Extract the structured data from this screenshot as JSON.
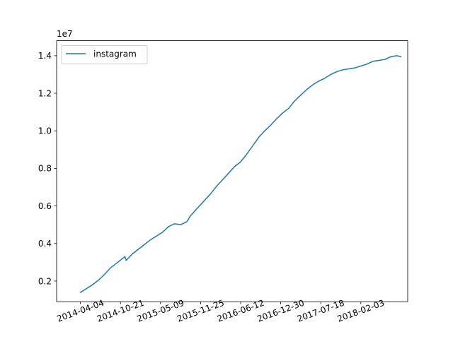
{
  "chart_data": {
    "type": "line",
    "title": "",
    "xlabel": "",
    "ylabel": "",
    "y_multiplier_label": "1e7",
    "x_tick_labels": [
      "2014-04-04",
      "2014-10-21",
      "2015-05-09",
      "2015-11-25",
      "2016-06-12",
      "2016-12-30",
      "2017-07-18",
      "2018-02-03"
    ],
    "y_ticks": [
      0.2,
      0.4,
      0.6,
      0.8,
      1.0,
      1.2,
      1.4
    ],
    "y_tick_labels": [
      "0.2",
      "0.4",
      "0.6",
      "0.8",
      "1.0",
      "1.2",
      "1.4"
    ],
    "xlim_days": [
      -119,
      1634
    ],
    "ylim": [
      0.09,
      1.48
    ],
    "legend_position": "upper-left",
    "series": [
      {
        "name": "instagram",
        "color": "#1f77b4",
        "x_days": [
          0,
          30,
          60,
          90,
          120,
          150,
          180,
          210,
          222,
          228,
          260,
          290,
          320,
          350,
          380,
          410,
          440,
          470,
          500,
          530,
          540,
          547,
          560,
          590,
          620,
          650,
          680,
          710,
          740,
          770,
          800,
          830,
          860,
          890,
          920,
          950,
          980,
          1010,
          1040,
          1070,
          1100,
          1130,
          1160,
          1190,
          1220,
          1250,
          1280,
          1310,
          1340,
          1370,
          1400,
          1430,
          1460,
          1490,
          1520,
          1550,
          1580,
          1600
        ],
        "values": [
          0.14,
          0.16,
          0.18,
          0.205,
          0.235,
          0.27,
          0.295,
          0.32,
          0.33,
          0.31,
          0.345,
          0.37,
          0.395,
          0.42,
          0.44,
          0.46,
          0.49,
          0.505,
          0.5,
          0.515,
          0.53,
          0.545,
          0.56,
          0.595,
          0.63,
          0.665,
          0.705,
          0.74,
          0.775,
          0.81,
          0.835,
          0.875,
          0.92,
          0.965,
          1.0,
          1.03,
          1.065,
          1.095,
          1.12,
          1.16,
          1.19,
          1.22,
          1.245,
          1.265,
          1.28,
          1.3,
          1.315,
          1.325,
          1.33,
          1.335,
          1.345,
          1.355,
          1.37,
          1.375,
          1.38,
          1.395,
          1.4,
          1.395
        ]
      }
    ]
  }
}
